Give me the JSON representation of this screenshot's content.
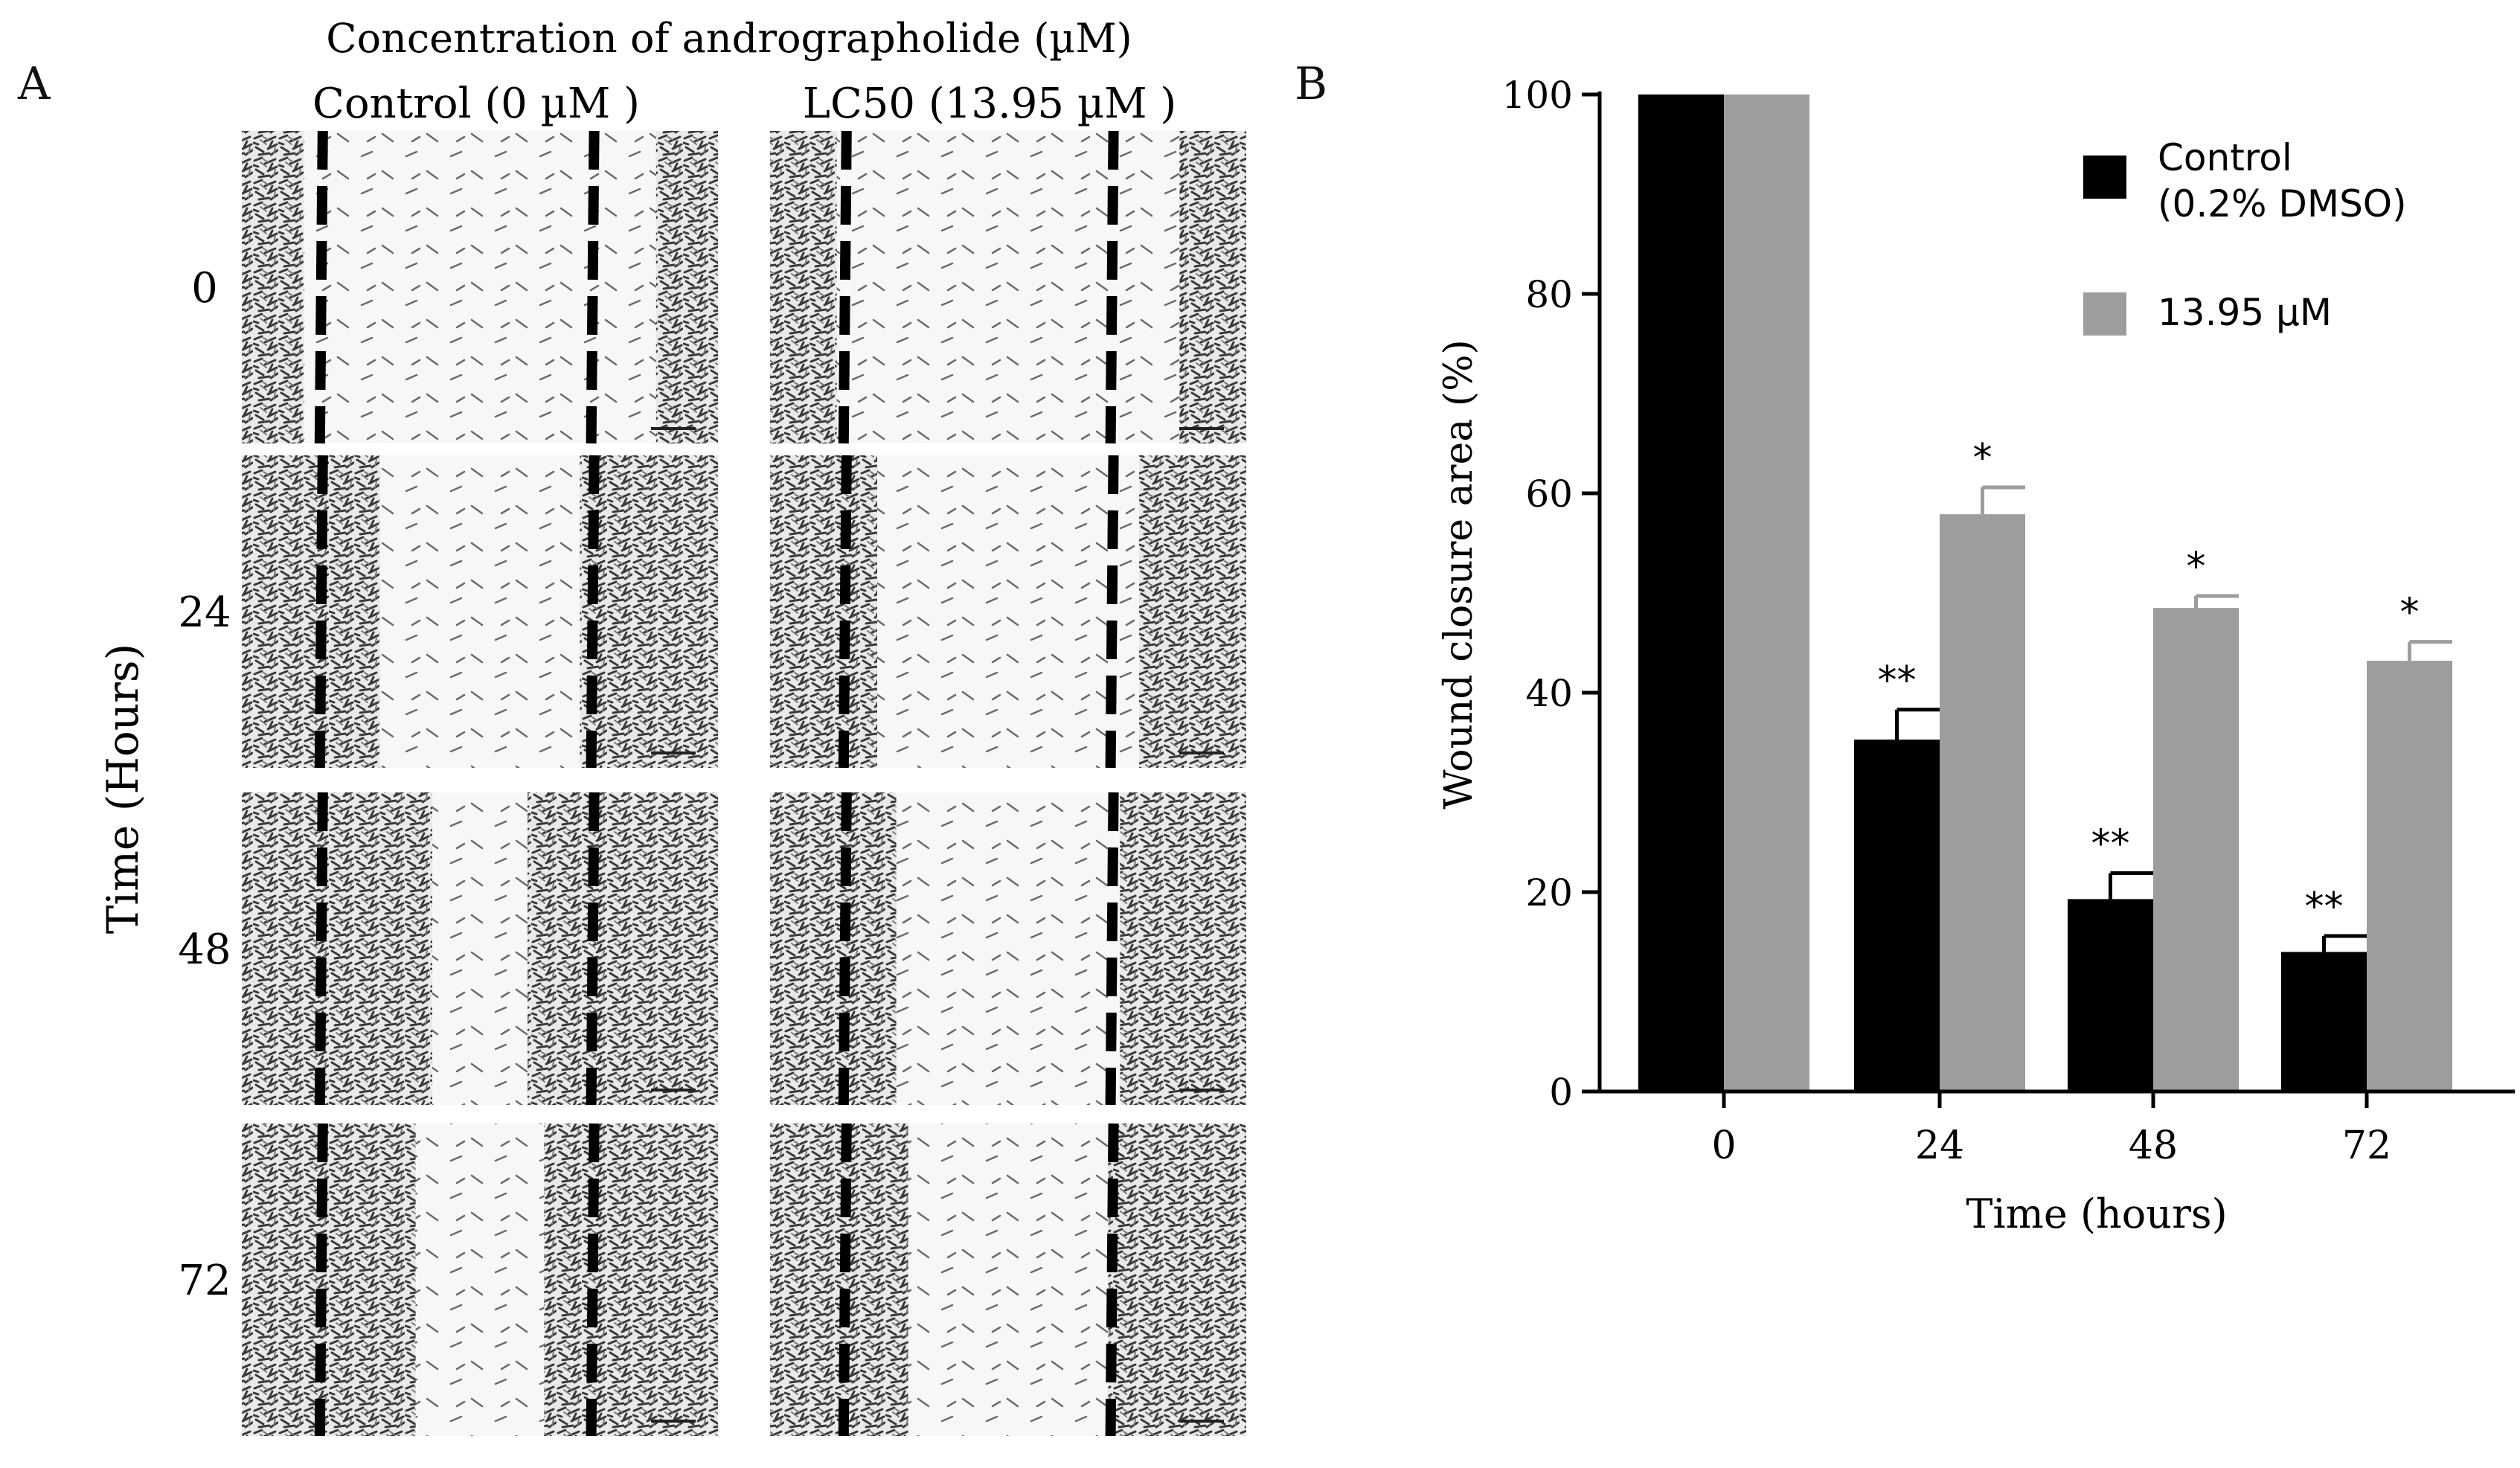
{
  "panel_a": {
    "letter": "A",
    "title": "Concentration of andrographolide (µM)",
    "column_labels": [
      "Control (0 µM )",
      "LC50 (13.95 µM )"
    ],
    "row_axis_label": "Time (Hours)",
    "row_labels": [
      "0",
      "24",
      "48",
      "72"
    ],
    "gap_fraction_control": [
      0.74,
      0.42,
      0.2,
      0.27
    ],
    "gap_fraction_treated": [
      0.72,
      0.55,
      0.47,
      0.42
    ]
  },
  "chart_data": {
    "letter": "B",
    "type": "bar",
    "categories": [
      "0",
      "24",
      "48",
      "72"
    ],
    "series": [
      {
        "name": "Control (0.2% DMSO)",
        "legend_lines": [
          "Control",
          "(0.2% DMSO)"
        ],
        "color": "#000000",
        "values": [
          100,
          35.3,
          19.3,
          14.0
        ],
        "errors": [
          0,
          3.0,
          2.6,
          1.6
        ],
        "significance": [
          "",
          "**",
          "**",
          "**"
        ]
      },
      {
        "name": "13.95 µM",
        "legend_lines": [
          "13.95 µM"
        ],
        "color": "#9d9d9f",
        "values": [
          100,
          57.9,
          48.5,
          43.2
        ],
        "errors": [
          0,
          2.7,
          1.2,
          1.9
        ],
        "significance": [
          "",
          "*",
          "*",
          "*"
        ]
      }
    ],
    "xlabel": "Time (hours)",
    "ylabel": "Wound closure area (%)",
    "ylim": [
      0,
      100
    ],
    "yticks": [
      0,
      20,
      40,
      60,
      80,
      100
    ],
    "grid": false,
    "legend_position": "top-right"
  }
}
